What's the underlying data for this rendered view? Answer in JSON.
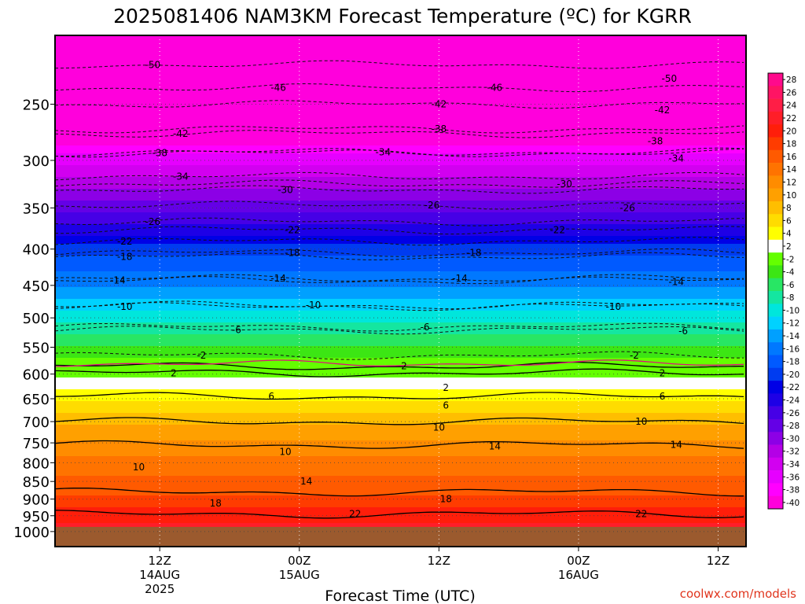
{
  "chart_data": {
    "type": "heatmap",
    "title": "2025081406 NAM3KM Forecast Temperature (ºC) for KGRR",
    "xlabel": "Forecast Time (UTC)",
    "credit": "coolwx.com/models",
    "y_axis": {
      "scale": "log",
      "range": [
        200,
        1050
      ],
      "ticks": [
        250,
        300,
        350,
        400,
        450,
        500,
        550,
        600,
        650,
        700,
        750,
        800,
        850,
        900,
        950,
        1000
      ]
    },
    "x_axis": {
      "range_hours": [
        -15,
        84
      ],
      "ticks": [
        {
          "hour": 0,
          "labels": [
            "12Z",
            "14AUG",
            "2025"
          ]
        },
        {
          "hour": 20,
          "labels": [
            "00Z",
            "15AUG"
          ]
        },
        {
          "hour": 40,
          "labels": [
            "12Z"
          ]
        },
        {
          "hour": 60,
          "labels": [
            "00Z",
            "16AUG"
          ]
        },
        {
          "hour": 80,
          "labels": [
            "12Z"
          ]
        }
      ]
    },
    "ground_level_hpa": 985,
    "colorbar": {
      "labels": [
        "28",
        "26",
        "24",
        "22",
        "20",
        "18",
        "16",
        "14",
        "12",
        "10",
        "8",
        "6",
        "4",
        "2",
        "-2",
        "-4",
        "-6",
        "-8",
        "-10",
        "-12",
        "-14",
        "-16",
        "-18",
        "-20",
        "-22",
        "-24",
        "-26",
        "-28",
        "-30",
        "-32",
        "-34",
        "-36",
        "-38",
        "-40"
      ],
      "colors": [
        "#ff0a8c",
        "#ff1464",
        "#ff1e46",
        "#ff1e28",
        "#ff1e0a",
        "#ff3c00",
        "#ff5a00",
        "#ff7300",
        "#ff8c00",
        "#ffa000",
        "#ffbe00",
        "#ffdc00",
        "#ffff00",
        "#ffffff",
        "#64ff00",
        "#3ce614",
        "#28e664",
        "#14e6a0",
        "#00e6dc",
        "#00d2ff",
        "#00a0ff",
        "#0078ff",
        "#005aff",
        "#003cf0",
        "#0000e6",
        "#1e00e6",
        "#4600e6",
        "#6400e6",
        "#8c00e6",
        "#b400e6",
        "#d200f0",
        "#e600ff",
        "#ff00ff",
        "#ff00dc"
      ]
    },
    "temperature_profile": [
      {
        "p": 200,
        "t": -52
      },
      {
        "p": 230,
        "t": -48
      },
      {
        "p": 250,
        "t": -45
      },
      {
        "p": 275,
        "t": -40
      },
      {
        "p": 300,
        "t": -35
      },
      {
        "p": 325,
        "t": -31
      },
      {
        "p": 350,
        "t": -26.5
      },
      {
        "p": 375,
        "t": -23
      },
      {
        "p": 400,
        "t": -19
      },
      {
        "p": 425,
        "t": -16.5
      },
      {
        "p": 450,
        "t": -14
      },
      {
        "p": 475,
        "t": -11.5
      },
      {
        "p": 500,
        "t": -8.5
      },
      {
        "p": 525,
        "t": -6
      },
      {
        "p": 550,
        "t": -3.5
      },
      {
        "p": 575,
        "t": -1.5
      },
      {
        "p": 600,
        "t": 1
      },
      {
        "p": 625,
        "t": 3.5
      },
      {
        "p": 650,
        "t": 5.5
      },
      {
        "p": 675,
        "t": 7.5
      },
      {
        "p": 700,
        "t": 9.5
      },
      {
        "p": 750,
        "t": 12.5
      },
      {
        "p": 800,
        "t": 14.5
      },
      {
        "p": 850,
        "t": 16.5
      },
      {
        "p": 900,
        "t": 18.5
      },
      {
        "p": 950,
        "t": 21
      },
      {
        "p": 985,
        "t": 23
      }
    ],
    "contours": [
      {
        "label": "-50",
        "p": 220
      },
      {
        "label": "-46",
        "p": 237
      },
      {
        "label": "-42",
        "p": 250
      },
      {
        "label": "-42",
        "p": 275
      },
      {
        "label": "-38",
        "p": 271
      },
      {
        "label": "-38",
        "p": 293
      },
      {
        "label": "-34",
        "p": 292
      },
      {
        "label": "-34",
        "p": 316
      },
      {
        "label": "-30",
        "p": 324
      },
      {
        "label": "-30",
        "p": 330
      },
      {
        "label": "-26",
        "p": 347
      },
      {
        "label": "-26",
        "p": 366
      },
      {
        "label": "-22",
        "p": 376
      },
      {
        "label": "-22",
        "p": 390
      },
      {
        "label": "-18",
        "p": 405
      },
      {
        "label": "-18",
        "p": 410
      },
      {
        "label": "-14",
        "p": 440
      },
      {
        "label": "-14",
        "p": 443
      },
      {
        "label": "-10",
        "p": 480
      },
      {
        "label": "-10",
        "p": 482
      },
      {
        "label": "-6",
        "p": 520
      },
      {
        "label": "-6",
        "p": 515
      },
      {
        "label": "-2",
        "p": 565
      },
      {
        "label": "2",
        "p": 598
      },
      {
        "label": "2",
        "p": 585
      },
      {
        "label": "6",
        "p": 645
      },
      {
        "label": "10",
        "p": 700
      },
      {
        "label": "14",
        "p": 755
      },
      {
        "label": "18",
        "p": 880
      },
      {
        "label": "22",
        "p": 945
      }
    ],
    "contour_labels": [
      {
        "text": "-50",
        "hour": -1,
        "p": 220
      },
      {
        "text": "-50",
        "hour": 73,
        "p": 230
      },
      {
        "text": "-46",
        "hour": 17,
        "p": 237
      },
      {
        "text": "-46",
        "hour": 48,
        "p": 237
      },
      {
        "text": "-42",
        "hour": 3,
        "p": 275
      },
      {
        "text": "-42",
        "hour": 40,
        "p": 250
      },
      {
        "text": "-42",
        "hour": 72,
        "p": 255
      },
      {
        "text": "-38",
        "hour": 0,
        "p": 293
      },
      {
        "text": "-38",
        "hour": 40,
        "p": 271
      },
      {
        "text": "-38",
        "hour": 71,
        "p": 282
      },
      {
        "text": "-34",
        "hour": 3,
        "p": 316
      },
      {
        "text": "-34",
        "hour": 32,
        "p": 292
      },
      {
        "text": "-34",
        "hour": 74,
        "p": 298
      },
      {
        "text": "-30",
        "hour": 18,
        "p": 330
      },
      {
        "text": "-30",
        "hour": 58,
        "p": 324
      },
      {
        "text": "-26",
        "hour": -1,
        "p": 366
      },
      {
        "text": "-26",
        "hour": 39,
        "p": 347
      },
      {
        "text": "-26",
        "hour": 67,
        "p": 350
      },
      {
        "text": "-22",
        "hour": -5,
        "p": 390
      },
      {
        "text": "-22",
        "hour": 19,
        "p": 376
      },
      {
        "text": "-22",
        "hour": 57,
        "p": 376
      },
      {
        "text": "-18",
        "hour": -5,
        "p": 410
      },
      {
        "text": "-18",
        "hour": 19,
        "p": 405
      },
      {
        "text": "-18",
        "hour": 45,
        "p": 405
      },
      {
        "text": "-14",
        "hour": -6,
        "p": 443
      },
      {
        "text": "-14",
        "hour": 17,
        "p": 440
      },
      {
        "text": "-14",
        "hour": 43,
        "p": 440
      },
      {
        "text": "-14",
        "hour": 74,
        "p": 445
      },
      {
        "text": "-10",
        "hour": -5,
        "p": 482
      },
      {
        "text": "-10",
        "hour": 22,
        "p": 480
      },
      {
        "text": "-10",
        "hour": 65,
        "p": 482
      },
      {
        "text": "-6",
        "hour": 11,
        "p": 520
      },
      {
        "text": "-6",
        "hour": 38,
        "p": 515
      },
      {
        "text": "-6",
        "hour": 75,
        "p": 522
      },
      {
        "text": "-2",
        "hour": 6,
        "p": 565
      },
      {
        "text": "-2",
        "hour": 68,
        "p": 565
      },
      {
        "text": "2",
        "hour": 2,
        "p": 598
      },
      {
        "text": "2",
        "hour": 35,
        "p": 585
      },
      {
        "text": "2",
        "hour": 41,
        "p": 627
      },
      {
        "text": "2",
        "hour": 72,
        "p": 598
      },
      {
        "text": "6",
        "hour": 16,
        "p": 645
      },
      {
        "text": "6",
        "hour": 41,
        "p": 664
      },
      {
        "text": "6",
        "hour": 72,
        "p": 645
      },
      {
        "text": "10",
        "hour": -3,
        "p": 812
      },
      {
        "text": "10",
        "hour": 18,
        "p": 772
      },
      {
        "text": "10",
        "hour": 40,
        "p": 713
      },
      {
        "text": "10",
        "hour": 69,
        "p": 700
      },
      {
        "text": "14",
        "hour": 21,
        "p": 850
      },
      {
        "text": "14",
        "hour": 48,
        "p": 758
      },
      {
        "text": "14",
        "hour": 74,
        "p": 755
      },
      {
        "text": "18",
        "hour": 8,
        "p": 912
      },
      {
        "text": "18",
        "hour": 41,
        "p": 900
      },
      {
        "text": "22",
        "hour": 28,
        "p": 945
      },
      {
        "text": "22",
        "hour": 69,
        "p": 945
      }
    ]
  }
}
